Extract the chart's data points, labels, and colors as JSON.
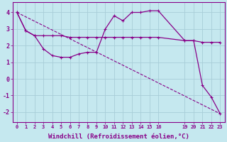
{
  "xlabel": "Windchill (Refroidissement éolien,°C)",
  "bg_color": "#c5e8ef",
  "grid_color": "#a8cdd8",
  "line_color": "#880088",
  "xlim": [
    -0.5,
    23.5
  ],
  "ylim": [
    -2.6,
    4.6
  ],
  "yticks": [
    -2,
    -1,
    0,
    1,
    2,
    3,
    4
  ],
  "xticks": [
    0,
    1,
    2,
    3,
    4,
    5,
    6,
    7,
    8,
    9,
    10,
    11,
    12,
    13,
    14,
    15,
    16,
    19,
    20,
    21,
    22,
    23
  ],
  "series1_x": [
    0,
    1,
    2,
    3,
    4,
    5,
    6,
    7,
    8,
    9,
    10,
    11,
    12,
    13,
    14,
    15,
    16,
    19,
    20,
    21,
    22,
    23
  ],
  "series1_y": [
    4.0,
    2.9,
    2.6,
    2.6,
    2.6,
    2.6,
    2.5,
    2.5,
    2.5,
    2.5,
    2.5,
    2.5,
    2.5,
    2.5,
    2.5,
    2.5,
    2.5,
    2.3,
    2.3,
    2.2,
    2.2,
    2.2
  ],
  "series2_x": [
    0,
    1,
    2,
    3,
    4,
    5,
    6,
    7,
    8,
    9,
    10,
    11,
    12,
    13,
    14,
    15,
    16,
    19,
    20,
    21,
    22,
    23
  ],
  "series2_y": [
    4.0,
    2.9,
    2.6,
    1.8,
    1.4,
    1.3,
    1.3,
    1.5,
    1.6,
    1.6,
    3.0,
    3.8,
    3.5,
    4.0,
    4.0,
    4.1,
    4.1,
    2.3,
    2.3,
    -0.4,
    -1.1,
    -2.1
  ],
  "series3_x": [
    0,
    23
  ],
  "series3_y": [
    4.0,
    -2.1
  ]
}
